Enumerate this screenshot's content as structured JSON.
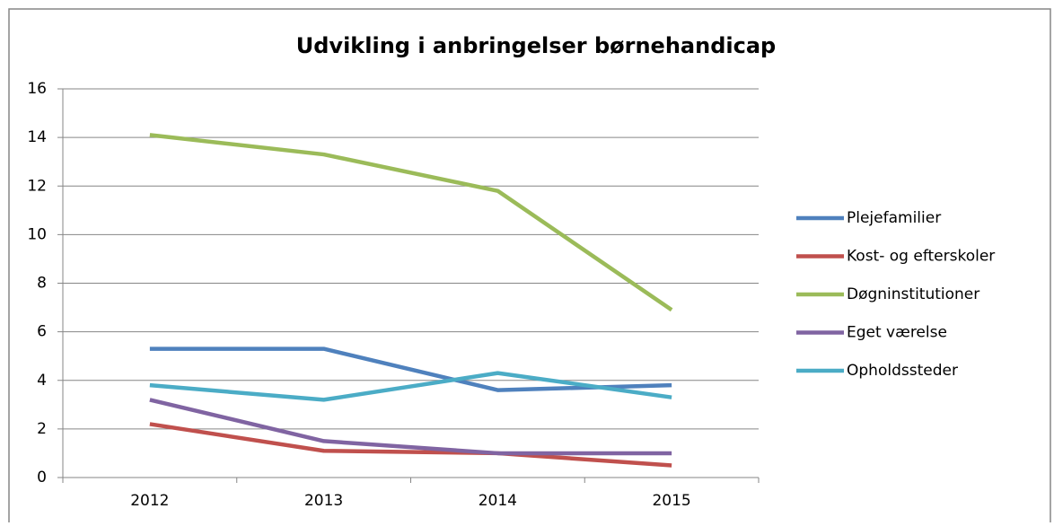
{
  "chart_data": {
    "type": "line",
    "title": "Udvikling i anbringelser børnehandicap",
    "categories": [
      "2012",
      "2013",
      "2014",
      "2015"
    ],
    "series": [
      {
        "name": "Plejefamilier",
        "color": "#4f81bd",
        "values": [
          5.3,
          5.3,
          3.6,
          3.8
        ]
      },
      {
        "name": "Kost- og efterskoler",
        "color": "#c0504d",
        "values": [
          2.2,
          1.1,
          1.0,
          0.5
        ]
      },
      {
        "name": "Døgninstitutioner",
        "color": "#9bbb59",
        "values": [
          14.1,
          13.3,
          11.8,
          6.9
        ]
      },
      {
        "name": "Eget værelse",
        "color": "#8064a2",
        "values": [
          3.2,
          1.5,
          1.0,
          1.0
        ]
      },
      {
        "name": "Opholdssteder",
        "color": "#4bacc6",
        "values": [
          3.8,
          3.2,
          4.3,
          3.3
        ]
      }
    ],
    "ylim": [
      0,
      16
    ],
    "yticks": [
      0,
      2,
      4,
      6,
      8,
      10,
      12,
      14,
      16
    ],
    "grid": true,
    "legend": "right"
  }
}
